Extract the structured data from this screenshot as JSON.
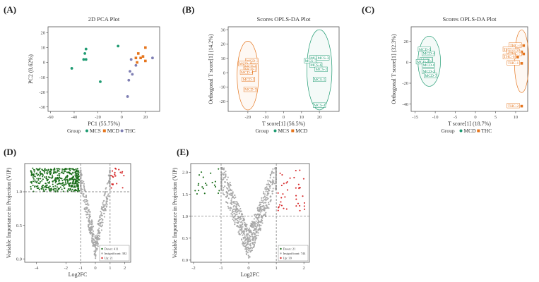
{
  "figure": {
    "labels": [
      "(A)",
      "(B)",
      "(C)",
      "(D)",
      "(E)"
    ]
  },
  "colors": {
    "mcs": "#1f9b72",
    "mcd": "#e5751d",
    "thc": "#7f7fb3",
    "down": "#1b6e1b",
    "up": "#d62728",
    "insig": "#a8a8a8",
    "dashed": "#6b6b6b"
  },
  "chart_data": [
    {
      "id": "A",
      "type": "scatter",
      "title": "2D PCA Plot",
      "xlabel": "PC1 (55.75%)",
      "ylabel": "PC2 (8.62%)",
      "xlim": [
        -62,
        32
      ],
      "ylim": [
        -33,
        24
      ],
      "xticks": [
        -60,
        -40,
        -20,
        0,
        20
      ],
      "yticks": [
        -30,
        -20,
        -10,
        0,
        10,
        20
      ],
      "legend": {
        "title": "Group",
        "entries": [
          "MCS",
          "MCD",
          "THC"
        ]
      },
      "series": [
        {
          "name": "MCS",
          "color": "#1f9b72",
          "points": [
            [
              -30,
              9
            ],
            [
              -31,
              6
            ],
            [
              -32,
              2
            ],
            [
              -30,
              2
            ],
            [
              -42,
              -4
            ],
            [
              -18,
              -13
            ],
            [
              -3,
              11
            ]
          ]
        },
        {
          "name": "MCD",
          "color": "#e5751d",
          "points": [
            [
              20,
              10
            ],
            [
              14,
              6
            ],
            [
              18,
              4
            ],
            [
              12,
              3
            ],
            [
              16,
              3
            ],
            [
              20,
              1
            ],
            [
              13,
              0
            ]
          ]
        },
        {
          "name": "THC",
          "color": "#7f7fb3",
          "points": [
            [
              26,
              3
            ],
            [
              8,
              2
            ],
            [
              12,
              -2
            ],
            [
              7,
              -6
            ],
            [
              9,
              -8
            ],
            [
              6,
              -12
            ],
            [
              5,
              -23
            ]
          ]
        }
      ]
    },
    {
      "id": "B",
      "type": "scatter",
      "title": "Scores OPLS-DA Plot",
      "xlabel": "T score[1] (56.5%)",
      "ylabel": "Orthogonal T score[1] (14.2%)",
      "xlim": [
        -31,
        31
      ],
      "ylim": [
        -27,
        32
      ],
      "xticks": [
        -20,
        -10,
        0,
        10,
        20
      ],
      "yticks": [
        -20,
        -10,
        0,
        10,
        20,
        30
      ],
      "legend": {
        "title": "Group",
        "entries": [
          "MCS",
          "MCD"
        ]
      },
      "series": [
        {
          "name": "MCD",
          "color": "#e5751d",
          "points": [
            [
              -19,
              8
            ],
            [
              -23,
              6
            ],
            [
              -20,
              4
            ],
            [
              -20,
              2
            ],
            [
              -22,
              0
            ],
            [
              -21,
              -5
            ],
            [
              -20,
              -12
            ]
          ],
          "labels": [
            "MCD-3",
            "MCD-1",
            "MCD-6",
            "MCD-2",
            "MCD-4",
            "MCD-5",
            "MCD-7"
          ]
        },
        {
          "name": "MCS",
          "color": "#1f9b72",
          "points": [
            [
              18,
              10
            ],
            [
              22,
              10
            ],
            [
              15,
              8
            ],
            [
              18,
              5
            ],
            [
              21,
              2
            ],
            [
              20,
              -5
            ],
            [
              20,
              -23
            ]
          ],
          "labels": [
            "MCS-1",
            "MCS-3",
            "MCS-7",
            "MCS-6",
            "MCS-2",
            "MCS-5",
            "MCS-4"
          ]
        }
      ],
      "ellipses": [
        {
          "group": "MCD",
          "cx": -20,
          "cy": -2,
          "rx": 6,
          "ry": 24
        },
        {
          "group": "MCS",
          "cx": 20,
          "cy": 2,
          "rx": 7,
          "ry": 28
        }
      ]
    },
    {
      "id": "C",
      "type": "scatter",
      "title": "Scores OPLS-DA Plot",
      "xlabel": "T score[1] (18.7%)",
      "ylabel": "Orthogonal T score[1] (32.3%)",
      "xlim": [
        -16,
        13
      ],
      "ylim": [
        -47,
        34
      ],
      "xticks": [
        -15,
        -10,
        -5,
        0,
        5,
        10
      ],
      "yticks": [
        -40,
        -20,
        0,
        20
      ],
      "legend": {
        "title": "Group",
        "entries": [
          "MCD",
          "THC"
        ]
      },
      "series": [
        {
          "name": "MCD",
          "color": "#1f9b72",
          "points": [
            [
              -12,
              12
            ],
            [
              -11,
              8
            ],
            [
              -11.5,
              2
            ],
            [
              -12.5,
              0
            ],
            [
              -11,
              -3
            ],
            [
              -11,
              -9
            ],
            [
              -10.5,
              -13
            ]
          ],
          "labels": [
            "MCD-5",
            "MCD-4",
            "MCD-3",
            "MCD-1",
            "MCD-6",
            "MCD-2",
            "MCD-7"
          ]
        },
        {
          "name": "THC",
          "color": "#e5751d",
          "points": [
            [
              12,
              16
            ],
            [
              10.5,
              12
            ],
            [
              11.5,
              10
            ],
            [
              12,
              8
            ],
            [
              10.5,
              5
            ],
            [
              11.5,
              -1
            ],
            [
              11.5,
              -42
            ]
          ],
          "labels": [
            "THC-3",
            "THC-4",
            "THC-5",
            "THC-7",
            "THC-6",
            "THC-1",
            "THC-2"
          ]
        }
      ],
      "ellipses": [
        {
          "group": "MCD",
          "cx": -11.5,
          "cy": 1,
          "rx": 2.8,
          "ry": 24
        },
        {
          "group": "THC",
          "cx": 11.5,
          "cy": 1,
          "rx": 1.8,
          "ry": 30
        }
      ]
    },
    {
      "id": "D",
      "type": "scatter",
      "xlabel": "Log2FC",
      "ylabel": "Variable Importance in Projection (VIP)",
      "xlim": [
        -4.8,
        2.4
      ],
      "ylim": [
        -0.05,
        1.42
      ],
      "xticks": [
        -4,
        -2,
        -1,
        0,
        1,
        2
      ],
      "yticks": [
        0.0,
        0.5,
        1.0
      ],
      "thresholds": {
        "x": [
          -1,
          1
        ],
        "y": 1.0
      },
      "legend": {
        "entries": [
          "Down: 411",
          "Insignificant: 382",
          "Up: 21"
        ]
      },
      "groups": {
        "down": 411,
        "insignificant": 382,
        "up": 21
      }
    },
    {
      "id": "E",
      "type": "scatter",
      "xlabel": "Log2FC",
      "ylabel": "Variable Importance in Projection (VIP)",
      "xlim": [
        -2.1,
        2.2
      ],
      "ylim": [
        -0.05,
        2.2
      ],
      "xticks": [
        -2,
        -1,
        0,
        1,
        2
      ],
      "yticks": [
        0.0,
        0.5,
        1.0,
        1.5,
        2.0
      ],
      "thresholds": {
        "x": [
          -1,
          1
        ],
        "y": 1.0
      },
      "legend": {
        "entries": [
          "Down: 21",
          "Insignificant: 744",
          "Up: 39"
        ]
      },
      "groups": {
        "down": 21,
        "insignificant": 744,
        "up": 39
      }
    }
  ]
}
